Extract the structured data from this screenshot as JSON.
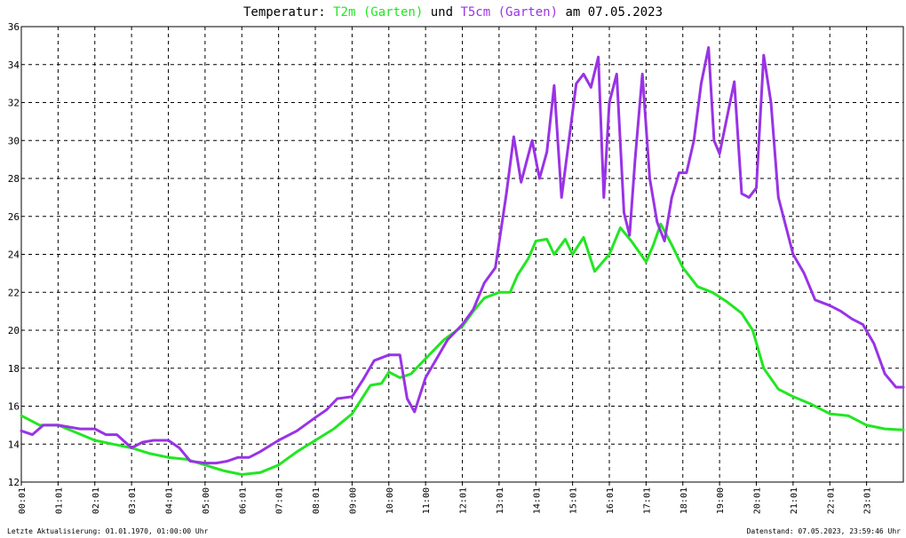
{
  "title": {
    "prefix": "Temperatur: ",
    "series1": "T2m (Garten)",
    "middle": " und ",
    "series2": "T5cm (Garten)",
    "suffix": " am 07.05.2023"
  },
  "footer": {
    "left": "Letzte Aktualisierung: 01.01.1970, 01:00:00 Uhr",
    "right": "Datenstand: 07.05.2023, 23:59:46 Uhr"
  },
  "chart_data": {
    "type": "line",
    "ylim": [
      12,
      36
    ],
    "xlim": [
      0,
      24
    ],
    "grid": true,
    "yticks": [
      "12",
      "14",
      "16",
      "18",
      "20",
      "22",
      "24",
      "26",
      "28",
      "30",
      "32",
      "34",
      "36"
    ],
    "xticks": [
      "00:01",
      "01:01",
      "02:01",
      "03:01",
      "04:01",
      "05:00",
      "06:01",
      "07:01",
      "08:01",
      "09:00",
      "10:00",
      "11:00",
      "12:01",
      "13:01",
      "14:01",
      "15:01",
      "16:01",
      "17:01",
      "18:01",
      "19:00",
      "20:01",
      "21:01",
      "22:01",
      "23:01"
    ],
    "series": [
      {
        "name": "T2m (Garten)",
        "color": "#22e622",
        "points": [
          [
            0,
            15.5
          ],
          [
            0.5,
            15.0
          ],
          [
            1,
            15.0
          ],
          [
            1.5,
            14.6
          ],
          [
            2,
            14.2
          ],
          [
            2.5,
            14.0
          ],
          [
            3,
            13.8
          ],
          [
            3.5,
            13.5
          ],
          [
            4,
            13.3
          ],
          [
            4.5,
            13.2
          ],
          [
            5,
            12.9
          ],
          [
            5.5,
            12.6
          ],
          [
            6,
            12.4
          ],
          [
            6.5,
            12.5
          ],
          [
            7,
            12.9
          ],
          [
            7.5,
            13.6
          ],
          [
            8,
            14.2
          ],
          [
            8.5,
            14.8
          ],
          [
            9,
            15.6
          ],
          [
            9.3,
            16.5
          ],
          [
            9.5,
            17.1
          ],
          [
            9.8,
            17.2
          ],
          [
            10,
            17.8
          ],
          [
            10.3,
            17.5
          ],
          [
            10.6,
            17.7
          ],
          [
            11,
            18.5
          ],
          [
            11.5,
            19.5
          ],
          [
            12,
            20.2
          ],
          [
            12.3,
            21.0
          ],
          [
            12.6,
            21.7
          ],
          [
            13,
            22.0
          ],
          [
            13.3,
            22.0
          ],
          [
            13.5,
            22.9
          ],
          [
            13.8,
            23.8
          ],
          [
            14,
            24.7
          ],
          [
            14.3,
            24.8
          ],
          [
            14.5,
            24.0
          ],
          [
            14.8,
            24.8
          ],
          [
            15,
            24.0
          ],
          [
            15.3,
            24.9
          ],
          [
            15.6,
            23.1
          ],
          [
            16,
            24.0
          ],
          [
            16.3,
            25.4
          ],
          [
            16.6,
            24.7
          ],
          [
            17,
            23.6
          ],
          [
            17.2,
            24.5
          ],
          [
            17.4,
            25.6
          ],
          [
            17.7,
            24.5
          ],
          [
            18,
            23.3
          ],
          [
            18.4,
            22.3
          ],
          [
            18.8,
            22.0
          ],
          [
            19.2,
            21.5
          ],
          [
            19.6,
            20.9
          ],
          [
            19.9,
            20.0
          ],
          [
            20.2,
            18.0
          ],
          [
            20.6,
            16.9
          ],
          [
            21,
            16.5
          ],
          [
            21.5,
            16.1
          ],
          [
            22,
            15.6
          ],
          [
            22.5,
            15.5
          ],
          [
            23,
            15.0
          ],
          [
            23.5,
            14.8
          ],
          [
            24,
            14.75
          ]
        ]
      },
      {
        "name": "T5cm (Garten)",
        "color": "#9933e6",
        "points": [
          [
            0,
            14.7
          ],
          [
            0.3,
            14.5
          ],
          [
            0.6,
            15.0
          ],
          [
            1,
            15.0
          ],
          [
            1.3,
            14.9
          ],
          [
            1.6,
            14.8
          ],
          [
            2,
            14.8
          ],
          [
            2.3,
            14.5
          ],
          [
            2.6,
            14.5
          ],
          [
            3,
            13.8
          ],
          [
            3.3,
            14.1
          ],
          [
            3.6,
            14.2
          ],
          [
            4,
            14.2
          ],
          [
            4.3,
            13.8
          ],
          [
            4.6,
            13.1
          ],
          [
            5,
            13.0
          ],
          [
            5.3,
            13.0
          ],
          [
            5.6,
            13.1
          ],
          [
            5.9,
            13.3
          ],
          [
            6.2,
            13.3
          ],
          [
            6.5,
            13.6
          ],
          [
            7,
            14.2
          ],
          [
            7.5,
            14.7
          ],
          [
            8,
            15.4
          ],
          [
            8.3,
            15.8
          ],
          [
            8.6,
            16.4
          ],
          [
            9,
            16.5
          ],
          [
            9.3,
            17.4
          ],
          [
            9.6,
            18.4
          ],
          [
            10,
            18.7
          ],
          [
            10.3,
            18.7
          ],
          [
            10.5,
            16.4
          ],
          [
            10.7,
            15.7
          ],
          [
            11,
            17.5
          ],
          [
            11.3,
            18.5
          ],
          [
            11.6,
            19.5
          ],
          [
            12,
            20.3
          ],
          [
            12.3,
            21.1
          ],
          [
            12.6,
            22.5
          ],
          [
            12.9,
            23.3
          ],
          [
            13.2,
            27.2
          ],
          [
            13.4,
            30.2
          ],
          [
            13.6,
            27.8
          ],
          [
            13.9,
            30.0
          ],
          [
            14.1,
            28.0
          ],
          [
            14.3,
            29.4
          ],
          [
            14.5,
            32.9
          ],
          [
            14.7,
            27.0
          ],
          [
            14.9,
            30.0
          ],
          [
            15.1,
            33.0
          ],
          [
            15.3,
            33.5
          ],
          [
            15.5,
            32.8
          ],
          [
            15.7,
            34.4
          ],
          [
            15.85,
            27.0
          ],
          [
            16.0,
            32.0
          ],
          [
            16.2,
            33.5
          ],
          [
            16.4,
            26.2
          ],
          [
            16.55,
            25.0
          ],
          [
            16.7,
            29.0
          ],
          [
            16.9,
            33.5
          ],
          [
            17.1,
            28.0
          ],
          [
            17.3,
            25.7
          ],
          [
            17.5,
            24.7
          ],
          [
            17.7,
            27.0
          ],
          [
            17.9,
            28.3
          ],
          [
            18.1,
            28.3
          ],
          [
            18.3,
            30.0
          ],
          [
            18.5,
            33.0
          ],
          [
            18.7,
            34.9
          ],
          [
            18.85,
            30.0
          ],
          [
            19.0,
            29.3
          ],
          [
            19.2,
            31.2
          ],
          [
            19.4,
            33.1
          ],
          [
            19.6,
            27.2
          ],
          [
            19.8,
            27.0
          ],
          [
            20.0,
            27.5
          ],
          [
            20.2,
            34.5
          ],
          [
            20.4,
            32.0
          ],
          [
            20.6,
            27.0
          ],
          [
            20.8,
            25.5
          ],
          [
            21.0,
            24.0
          ],
          [
            21.3,
            23.0
          ],
          [
            21.6,
            21.6
          ],
          [
            22,
            21.3
          ],
          [
            22.3,
            21.0
          ],
          [
            22.6,
            20.6
          ],
          [
            22.9,
            20.3
          ],
          [
            23.2,
            19.3
          ],
          [
            23.5,
            17.7
          ],
          [
            23.8,
            17.0
          ],
          [
            24,
            17.0
          ]
        ]
      }
    ]
  }
}
